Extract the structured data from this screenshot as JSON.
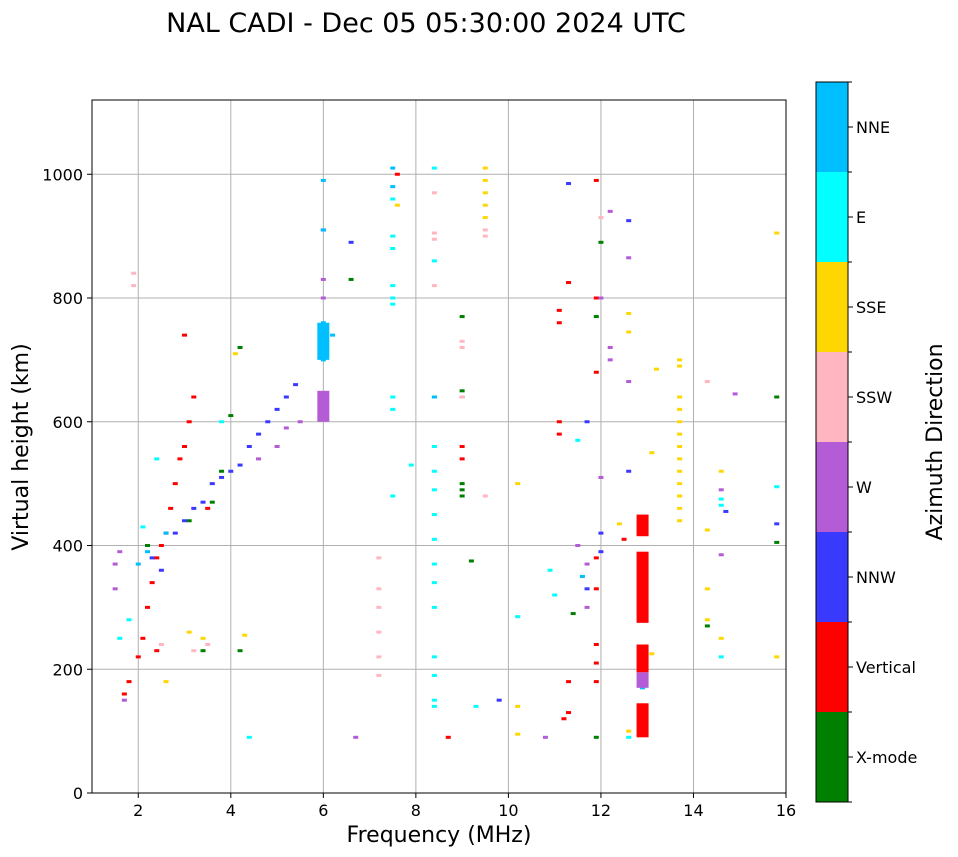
{
  "chart_data": {
    "type": "scatter",
    "title": "NAL CADI - Dec 05 05:30:00 2024 UTC",
    "xlabel": "Frequency (MHz)",
    "ylabel": "Virtual height (km)",
    "xlim": [
      1,
      16
    ],
    "ylim": [
      0,
      1120
    ],
    "xticks": [
      2,
      4,
      6,
      8,
      10,
      12,
      14,
      16
    ],
    "yticks": [
      0,
      200,
      400,
      600,
      800,
      1000
    ],
    "grid": true,
    "colorbar": {
      "label": "Azimuth Direction",
      "categories": [
        {
          "name": "X-mode",
          "color": "#008000"
        },
        {
          "name": "Vertical",
          "color": "#ff0000"
        },
        {
          "name": "NNW",
          "color": "#3a3aff"
        },
        {
          "name": "W",
          "color": "#b45bd6"
        },
        {
          "name": "SSW",
          "color": "#ffb6c1"
        },
        {
          "name": "SSE",
          "color": "#ffd700"
        },
        {
          "name": "E",
          "color": "#00ffff"
        },
        {
          "name": "NNE",
          "color": "#00bfff"
        }
      ]
    },
    "series": [
      {
        "name": "X-mode",
        "points": [
          [
            2.2,
            400
          ],
          [
            3.1,
            440
          ],
          [
            3.6,
            470
          ],
          [
            4.0,
            610
          ],
          [
            4.2,
            720
          ],
          [
            3.8,
            520
          ],
          [
            6.6,
            830
          ],
          [
            9.0,
            500
          ],
          [
            9.0,
            490
          ],
          [
            9.0,
            480
          ],
          [
            9.0,
            640
          ],
          [
            9.0,
            650
          ],
          [
            9.0,
            770
          ],
          [
            9.2,
            375
          ],
          [
            11.4,
            290
          ],
          [
            11.9,
            770
          ],
          [
            11.9,
            90
          ],
          [
            12.0,
            890
          ],
          [
            14.3,
            270
          ],
          [
            15.8,
            640
          ],
          [
            15.8,
            405
          ],
          [
            4.2,
            230
          ],
          [
            3.4,
            230
          ]
        ]
      },
      {
        "name": "Vertical",
        "points": [
          [
            1.7,
            160
          ],
          [
            1.8,
            180
          ],
          [
            2.0,
            220
          ],
          [
            2.1,
            250
          ],
          [
            2.2,
            300
          ],
          [
            2.3,
            340
          ],
          [
            2.4,
            380
          ],
          [
            2.5,
            400
          ],
          [
            2.6,
            420
          ],
          [
            2.7,
            460
          ],
          [
            2.8,
            500
          ],
          [
            2.9,
            540
          ],
          [
            3.0,
            560
          ],
          [
            3.1,
            600
          ],
          [
            3.2,
            640
          ],
          [
            3.0,
            740
          ],
          [
            3.5,
            460
          ],
          [
            2.4,
            230
          ],
          [
            8.7,
            90
          ],
          [
            9.0,
            540
          ],
          [
            9.0,
            560
          ],
          [
            11.2,
            120
          ],
          [
            11.3,
            130
          ],
          [
            11.3,
            180
          ],
          [
            11.3,
            825
          ],
          [
            11.1,
            780
          ],
          [
            11.1,
            760
          ],
          [
            11.1,
            600
          ],
          [
            11.1,
            580
          ],
          [
            11.9,
            990
          ],
          [
            11.9,
            800
          ],
          [
            11.9,
            680
          ],
          [
            11.9,
            380
          ],
          [
            11.9,
            330
          ],
          [
            11.9,
            240
          ],
          [
            11.9,
            210
          ],
          [
            11.9,
            180
          ],
          [
            12.5,
            410
          ],
          [
            7.6,
            1000
          ]
        ]
      },
      {
        "name": "NNW",
        "points": [
          [
            2.3,
            380
          ],
          [
            2.5,
            360
          ],
          [
            2.8,
            420
          ],
          [
            3.0,
            440
          ],
          [
            3.2,
            460
          ],
          [
            3.4,
            470
          ],
          [
            3.6,
            500
          ],
          [
            3.8,
            510
          ],
          [
            4.0,
            520
          ],
          [
            4.2,
            530
          ],
          [
            4.4,
            560
          ],
          [
            4.6,
            580
          ],
          [
            4.8,
            600
          ],
          [
            5.0,
            620
          ],
          [
            5.2,
            640
          ],
          [
            5.4,
            660
          ],
          [
            6.6,
            890
          ],
          [
            6.0,
            910
          ],
          [
            9.8,
            150
          ],
          [
            11.3,
            985
          ],
          [
            11.7,
            600
          ],
          [
            12.0,
            420
          ],
          [
            12.0,
            390
          ],
          [
            11.7,
            330
          ],
          [
            12.6,
            925
          ],
          [
            14.7,
            455
          ],
          [
            15.8,
            435
          ],
          [
            12.6,
            520
          ]
        ]
      },
      {
        "name": "W",
        "points": [
          [
            1.5,
            330
          ],
          [
            1.5,
            370
          ],
          [
            1.6,
            390
          ],
          [
            1.7,
            150
          ],
          [
            4.6,
            540
          ],
          [
            5.0,
            560
          ],
          [
            5.2,
            590
          ],
          [
            5.5,
            600
          ],
          [
            6.0,
            640
          ],
          [
            6.0,
            620
          ],
          [
            6.0,
            800
          ],
          [
            6.0,
            830
          ],
          [
            6.7,
            90
          ],
          [
            10.8,
            90
          ],
          [
            11.5,
            400
          ],
          [
            11.7,
            370
          ],
          [
            11.7,
            300
          ],
          [
            12.0,
            800
          ],
          [
            12.0,
            510
          ],
          [
            12.2,
            940
          ],
          [
            12.6,
            865
          ],
          [
            12.6,
            665
          ],
          [
            14.6,
            490
          ],
          [
            14.6,
            385
          ],
          [
            14.9,
            645
          ],
          [
            12.2,
            720
          ],
          [
            12.2,
            700
          ]
        ]
      },
      {
        "name": "SSW",
        "points": [
          [
            1.9,
            840
          ],
          [
            1.9,
            820
          ],
          [
            2.5,
            240
          ],
          [
            3.2,
            230
          ],
          [
            3.5,
            240
          ],
          [
            7.2,
            380
          ],
          [
            7.2,
            330
          ],
          [
            7.2,
            300
          ],
          [
            7.2,
            260
          ],
          [
            7.2,
            220
          ],
          [
            7.2,
            190
          ],
          [
            8.4,
            970
          ],
          [
            8.4,
            905
          ],
          [
            8.4,
            895
          ],
          [
            8.4,
            820
          ],
          [
            9.0,
            730
          ],
          [
            9.0,
            720
          ],
          [
            9.0,
            640
          ],
          [
            9.5,
            480
          ],
          [
            9.5,
            910
          ],
          [
            9.5,
            900
          ],
          [
            12.0,
            930
          ],
          [
            14.3,
            665
          ]
        ]
      },
      {
        "name": "SSE",
        "points": [
          [
            2.6,
            180
          ],
          [
            3.1,
            260
          ],
          [
            3.4,
            250
          ],
          [
            4.3,
            255
          ],
          [
            4.1,
            710
          ],
          [
            9.5,
            1010
          ],
          [
            9.5,
            990
          ],
          [
            9.5,
            970
          ],
          [
            9.5,
            950
          ],
          [
            9.5,
            930
          ],
          [
            10.2,
            500
          ],
          [
            10.2,
            140
          ],
          [
            10.2,
            95
          ],
          [
            12.4,
            435
          ],
          [
            12.6,
            775
          ],
          [
            12.6,
            745
          ],
          [
            12.6,
            100
          ],
          [
            13.1,
            550
          ],
          [
            13.2,
            685
          ],
          [
            13.1,
            225
          ],
          [
            13.7,
            700
          ],
          [
            13.7,
            690
          ],
          [
            13.7,
            640
          ],
          [
            13.7,
            620
          ],
          [
            13.7,
            600
          ],
          [
            13.7,
            580
          ],
          [
            13.7,
            560
          ],
          [
            13.7,
            540
          ],
          [
            13.7,
            520
          ],
          [
            13.7,
            500
          ],
          [
            13.7,
            480
          ],
          [
            13.7,
            460
          ],
          [
            13.7,
            440
          ],
          [
            14.3,
            280
          ],
          [
            14.3,
            330
          ],
          [
            14.3,
            425
          ],
          [
            14.6,
            520
          ],
          [
            14.6,
            250
          ],
          [
            15.8,
            905
          ],
          [
            15.8,
            220
          ],
          [
            7.6,
            950
          ]
        ]
      },
      {
        "name": "E",
        "points": [
          [
            1.6,
            250
          ],
          [
            1.8,
            280
          ],
          [
            2.1,
            430
          ],
          [
            2.4,
            540
          ],
          [
            3.8,
            600
          ],
          [
            4.4,
            90
          ],
          [
            7.5,
            960
          ],
          [
            7.5,
            900
          ],
          [
            7.5,
            880
          ],
          [
            7.5,
            820
          ],
          [
            7.5,
            800
          ],
          [
            7.5,
            790
          ],
          [
            7.5,
            640
          ],
          [
            7.5,
            620
          ],
          [
            7.5,
            480
          ],
          [
            8.4,
            1010
          ],
          [
            8.4,
            860
          ],
          [
            8.4,
            640
          ],
          [
            8.4,
            560
          ],
          [
            8.4,
            520
          ],
          [
            8.4,
            490
          ],
          [
            8.4,
            450
          ],
          [
            8.4,
            410
          ],
          [
            8.4,
            370
          ],
          [
            8.4,
            340
          ],
          [
            8.4,
            300
          ],
          [
            8.4,
            220
          ],
          [
            8.4,
            190
          ],
          [
            8.4,
            150
          ],
          [
            8.4,
            140
          ],
          [
            7.9,
            530
          ],
          [
            9.3,
            140
          ],
          [
            10.2,
            285
          ],
          [
            10.9,
            360
          ],
          [
            11.0,
            320
          ],
          [
            11.5,
            570
          ],
          [
            12.6,
            90
          ],
          [
            14.6,
            475
          ],
          [
            14.6,
            465
          ],
          [
            14.6,
            220
          ],
          [
            15.8,
            495
          ]
        ]
      },
      {
        "name": "NNE",
        "points": [
          [
            2.0,
            370
          ],
          [
            2.2,
            390
          ],
          [
            2.6,
            420
          ],
          [
            6.0,
            990
          ],
          [
            6.0,
            910
          ],
          [
            6.0,
            760
          ],
          [
            6.0,
            740
          ],
          [
            6.0,
            720
          ],
          [
            6.0,
            700
          ],
          [
            6.2,
            740
          ],
          [
            7.5,
            1010
          ],
          [
            7.5,
            980
          ],
          [
            8.4,
            640
          ],
          [
            11.6,
            350
          ],
          [
            12.9,
            180
          ],
          [
            12.9,
            170
          ]
        ]
      }
    ],
    "bars": [
      {
        "name": "Vertical",
        "x": 12.9,
        "y_from": 415,
        "y_to": 450
      },
      {
        "name": "Vertical",
        "x": 12.9,
        "y_from": 275,
        "y_to": 390
      },
      {
        "name": "Vertical",
        "x": 12.9,
        "y_from": 195,
        "y_to": 240
      },
      {
        "name": "Vertical",
        "x": 12.9,
        "y_from": 90,
        "y_to": 145
      },
      {
        "name": "W",
        "x": 12.9,
        "y_from": 170,
        "y_to": 195
      },
      {
        "name": "W",
        "x": 6.0,
        "y_from": 600,
        "y_to": 650
      },
      {
        "name": "NNE",
        "x": 6.0,
        "y_from": 700,
        "y_to": 760
      }
    ]
  }
}
